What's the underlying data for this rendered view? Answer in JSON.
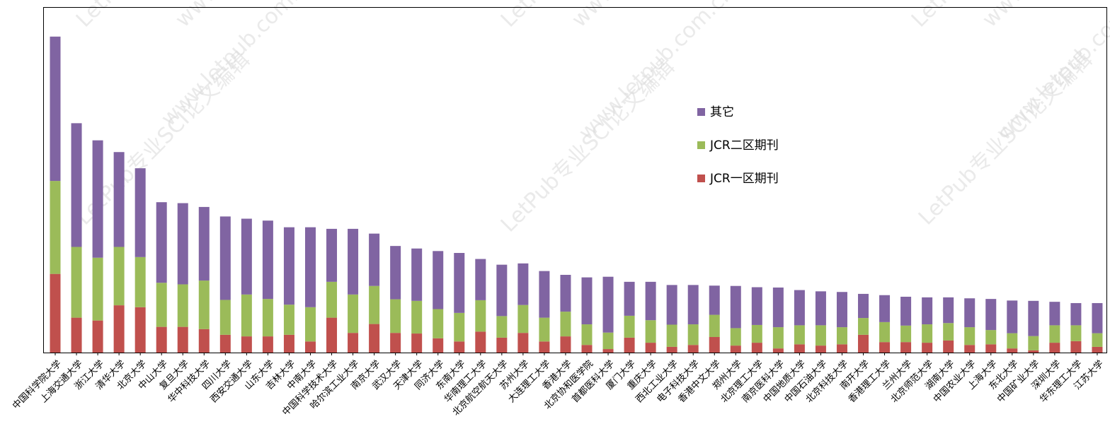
{
  "colors": {
    "jcr_q1": "#c0504d",
    "jcr_q2": "#9bbb59",
    "other": "#8064a2",
    "frame": "#000000",
    "watermark": "#d9d9d9"
  },
  "watermark_texts": [
    "LetPub专业SCI论文编辑",
    "www.letpub.com.cn"
  ],
  "chart_data": {
    "type": "bar",
    "stacked": true,
    "yaxis_visible": false,
    "ylim": [
      0,
      100
    ],
    "grid": false,
    "legend_position": "upper-right-center",
    "categories": [
      "中国科学院大学",
      "上海交通大学",
      "浙江大学",
      "清华大学",
      "北京大学",
      "中山大学",
      "复旦大学",
      "华中科技大学",
      "四川大学",
      "西安交通大学",
      "山东大学",
      "吉林大学",
      "中南大学",
      "中国科学技术大学",
      "哈尔滨工业大学",
      "南京大学",
      "武汉大学",
      "天津大学",
      "同济大学",
      "东南大学",
      "华南理工大学",
      "北京航空航天大学",
      "苏州大学",
      "大连理工大学",
      "香港大学",
      "北京协和医学院",
      "首都医科大学",
      "厦门大学",
      "重庆大学",
      "西北工业大学",
      "电子科技大学",
      "香港中文大学",
      "郑州大学",
      "北京理工大学",
      "南京医科大学",
      "中国地质大学",
      "中国石油大学",
      "北京科技大学",
      "南开大学",
      "香港理工大学",
      "兰州大学",
      "北京师范大学",
      "湖南大学",
      "中国农业大学",
      "上海大学",
      "东北大学",
      "中国矿业大学",
      "深圳大学",
      "华东理工大学",
      "江苏大学"
    ],
    "series": [
      {
        "name": "JCR一区期刊",
        "values": [
          24.8,
          11.0,
          10.1,
          14.9,
          14.3,
          8.1,
          8.1,
          7.4,
          5.6,
          5.1,
          5.1,
          5.6,
          3.5,
          11.0,
          6.2,
          9.0,
          6.2,
          6.0,
          4.5,
          3.5,
          6.6,
          4.7,
          6.2,
          3.5,
          5.1,
          2.4,
          1.1,
          4.7,
          3.1,
          1.8,
          2.4,
          4.9,
          2.2,
          3.1,
          1.3,
          2.6,
          2.2,
          2.6,
          5.6,
          3.3,
          3.3,
          3.1,
          3.8,
          2.4,
          2.6,
          1.3,
          0.7,
          3.1,
          3.6,
          1.8
        ]
      },
      {
        "name": "JCR二区期刊",
        "values": [
          29.3,
          22.3,
          19.8,
          18.4,
          15.8,
          13.9,
          13.4,
          15.3,
          11.0,
          13.2,
          11.8,
          9.5,
          10.8,
          11.3,
          12.1,
          12.0,
          10.6,
          10.3,
          9.2,
          9.0,
          9.9,
          6.8,
          8.8,
          7.5,
          7.8,
          6.5,
          5.2,
          6.9,
          7.1,
          7.0,
          6.5,
          7.0,
          5.5,
          5.6,
          6.7,
          6.0,
          6.4,
          5.4,
          5.3,
          6.3,
          5.2,
          5.8,
          5.5,
          5.6,
          4.5,
          4.8,
          4.5,
          5.5,
          5.0,
          4.3
        ]
      },
      {
        "name": "其它",
        "values": [
          45.5,
          39.0,
          37.0,
          29.9,
          28.0,
          25.4,
          25.6,
          23.2,
          26.3,
          23.9,
          24.7,
          24.4,
          25.2,
          16.7,
          20.7,
          16.5,
          16.8,
          16.5,
          18.3,
          18.9,
          13.0,
          16.2,
          13.1,
          14.7,
          11.6,
          14.8,
          17.6,
          10.7,
          12.1,
          12.5,
          12.4,
          9.2,
          13.3,
          11.9,
          12.5,
          11.1,
          10.7,
          11.1,
          7.6,
          8.5,
          9.1,
          8.5,
          8.1,
          9.1,
          9.8,
          10.3,
          11.1,
          7.4,
          7.0,
          9.5
        ]
      }
    ],
    "legend_order": [
      "其它",
      "JCR二区期刊",
      "JCR一区期刊"
    ]
  }
}
